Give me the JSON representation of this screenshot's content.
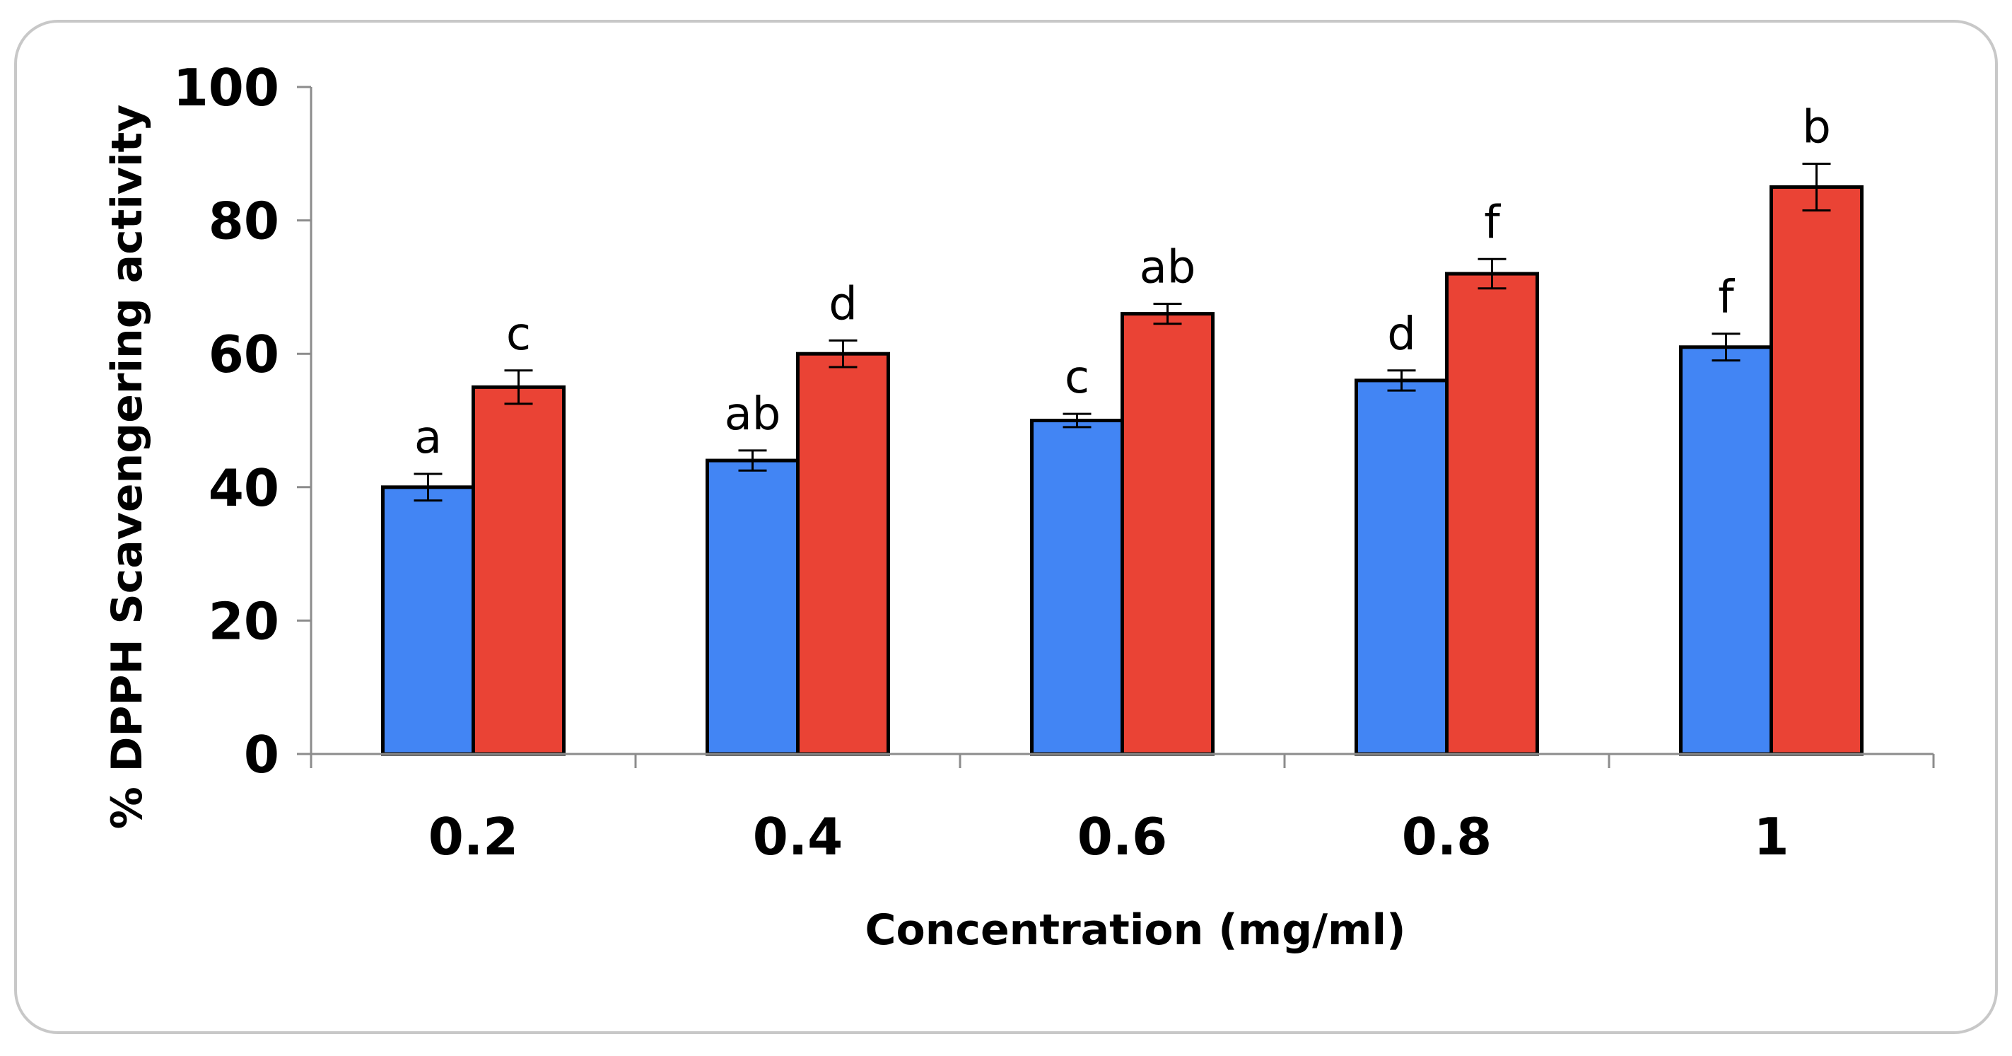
{
  "colors": {
    "series_a": "#4285f4",
    "series_b": "#ea4335",
    "outline": "#000000",
    "axis": "#8c8c8c",
    "frame_border": "#c8c8c8"
  },
  "chart_data": {
    "type": "bar",
    "title": "",
    "xlabel": "Concentration (mg/ml)",
    "ylabel": "% DPPH Scavengering activity",
    "categories": [
      "0.2",
      "0.4",
      "0.6",
      "0.8",
      "1"
    ],
    "ylim": [
      0,
      100
    ],
    "yticks": [
      0,
      20,
      40,
      60,
      80,
      100
    ],
    "ytick_labels": [
      "0",
      "20",
      "40",
      "60",
      "80",
      "100"
    ],
    "grid": false,
    "legend": "none",
    "series": [
      {
        "color": "#4285f4",
        "values": [
          40,
          44,
          50,
          56,
          61
        ],
        "errors": [
          2,
          1.5,
          1,
          1.5,
          2
        ],
        "labels": [
          "a",
          "ab",
          "c",
          "d",
          "f"
        ]
      },
      {
        "color": "#ea4335",
        "values": [
          55,
          60,
          66,
          72,
          85
        ],
        "errors": [
          2.5,
          2,
          1.5,
          2.2,
          3.5
        ],
        "labels": [
          "c",
          "d",
          "ab",
          "f",
          "b"
        ]
      }
    ]
  }
}
